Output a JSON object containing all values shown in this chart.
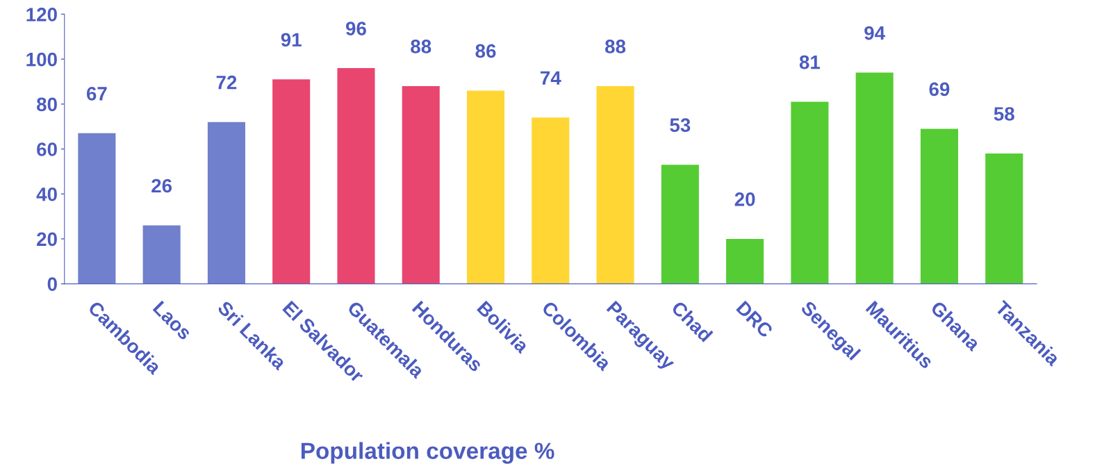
{
  "chart_data": {
    "type": "bar",
    "xlabel": "Population coverage %",
    "categories": [
      "Cambodia",
      "Laos",
      "Sri Lanka",
      "El Salvador",
      "Guatemala",
      "Honduras",
      "Bolivia",
      "Colombia",
      "Paraguay",
      "Chad",
      "DRC",
      "Senegal",
      "Mauritius",
      "Ghana",
      "Tanzania"
    ],
    "values": [
      67,
      26,
      72,
      91,
      96,
      88,
      86,
      74,
      88,
      53,
      20,
      81,
      94,
      69,
      58
    ],
    "colors": [
      "#7080cc",
      "#7080cc",
      "#7080cc",
      "#e8466e",
      "#e8466e",
      "#e8466e",
      "#ffd633",
      "#ffd633",
      "#ffd633",
      "#55cc33",
      "#55cc33",
      "#55cc33",
      "#55cc33",
      "#55cc33",
      "#55cc33"
    ],
    "ylim": [
      0,
      120
    ],
    "yticks": [
      0,
      20,
      40,
      60,
      80,
      100,
      120
    ],
    "data_labels": true,
    "grid": false,
    "legend": false
  }
}
